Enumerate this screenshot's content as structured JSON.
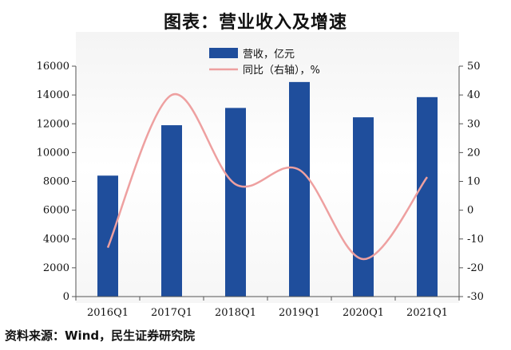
{
  "title": "图表：营业收入及增速",
  "source": "资料来源：Wind，民生证券研究院",
  "colors": {
    "bar": "#1f4e9c",
    "line": "#eea0a0",
    "axis": "#555555"
  },
  "chart_data": {
    "type": "bar",
    "categories": [
      "2016Q1",
      "2017Q1",
      "2018Q1",
      "2019Q1",
      "2020Q1",
      "2021Q1"
    ],
    "series": [
      {
        "name": "营收，亿元",
        "type": "bar",
        "axis": "left",
        "values": [
          8400,
          11900,
          13100,
          14900,
          12450,
          13850
        ]
      },
      {
        "name": "同比（右轴），%",
        "type": "line",
        "axis": "right",
        "values": [
          -13,
          40,
          9,
          14,
          -17,
          11.5
        ]
      }
    ],
    "y_left": {
      "min": 0,
      "max": 16000,
      "ticks": [
        0,
        2000,
        4000,
        6000,
        8000,
        10000,
        12000,
        14000,
        16000
      ]
    },
    "y_right": {
      "min": -30,
      "max": 50,
      "ticks": [
        -30,
        -20,
        -10,
        0,
        10,
        20,
        30,
        40,
        50
      ]
    },
    "legend_position": "top-center",
    "grid": false
  }
}
